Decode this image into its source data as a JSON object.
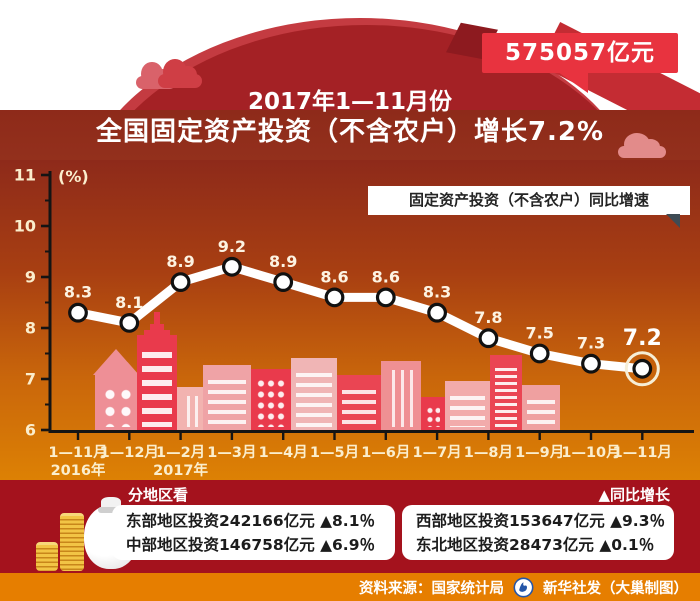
{
  "header": {
    "badge_label": "575057亿元",
    "title_line1": "2017年1—11月份",
    "title_line2": "全国固定资产投资（不含农户）增长7.2%"
  },
  "chart": {
    "legend_label": "固定资产投资（不含农户）同比增速"
  },
  "chart_data": {
    "type": "line",
    "title": "2017年1—11月份 全国固定资产投资（不含农户）增长7.2%",
    "categories": [
      "1—11月",
      "1—12月",
      "1—2月",
      "1—3月",
      "1—4月",
      "1—5月",
      "1—6月",
      "1—7月",
      "1—8月",
      "1—9月",
      "1—10月",
      "1—11月"
    ],
    "category_year_labels": {
      "0": "2016年",
      "2": "2017年"
    },
    "values": [
      8.3,
      8.1,
      8.9,
      9.2,
      8.9,
      8.6,
      8.6,
      8.3,
      7.8,
      7.5,
      7.3,
      7.2
    ],
    "series_name": "固定资产投资（不含农户）同比增速",
    "ylabel": "(%)",
    "ylim": [
      6,
      11
    ],
    "y_major_step": 1,
    "y_minor_step": 0.5,
    "grid": false,
    "legend_position": "top-right",
    "highlight_last_point": true,
    "line_color": "#ffffff",
    "label_color": "#fdf3e2"
  },
  "regions": {
    "section_title": "分地区看",
    "note_label": "▲同比增长",
    "left_box": [
      "东部地区投资242166亿元 ▲8.1％",
      "中部地区投资146758亿元 ▲6.9％"
    ],
    "right_box": [
      "西部地区投资153647亿元 ▲9.3％",
      "东北地区投资28473亿元 ▲0.1％"
    ]
  },
  "footer": {
    "source_label": "资料来源：国家统计局",
    "credit_label": "新华社发（大巢制图）"
  },
  "colors": {
    "accent_red": "#e8333f",
    "dome_red": "#a42125",
    "band_maroon": "#8e2a1a",
    "chart_orange": "#dd8104",
    "bottom_band_red": "#a4121d",
    "footer_orange": "#e67e00",
    "gold": "#f2c445"
  }
}
